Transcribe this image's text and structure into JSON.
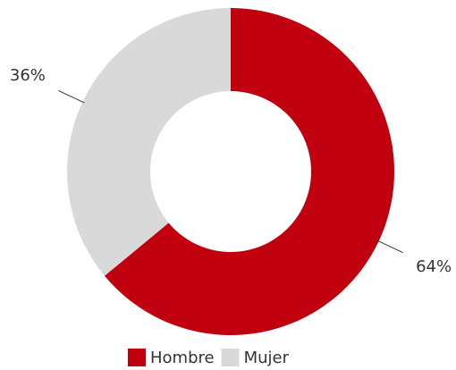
{
  "chart_data": {
    "type": "donut",
    "categories": [
      "Hombre",
      "Mujer"
    ],
    "values": [
      64,
      36
    ],
    "value_labels": [
      "64%",
      "36%"
    ],
    "colors": [
      "#c0000f",
      "#d9d9d9"
    ],
    "legend": "bottom"
  }
}
